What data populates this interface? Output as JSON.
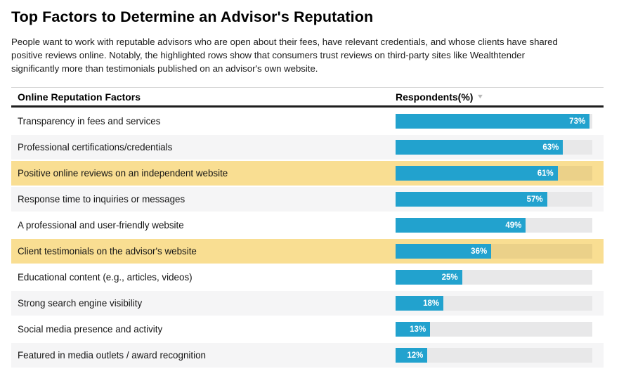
{
  "page": {
    "title": "Top Factors to Determine an Advisor's Reputation",
    "intro_lines": [
      "People want to work with reputable advisors who are open about their fees, have relevant credentials, and whose clients have shared",
      "positive reviews online. Notably, the highlighted rows show that consumers trust reviews on third-party sites like Wealthtender",
      "significantly more than testimonials published on an advisor's own website."
    ]
  },
  "table": {
    "factor_header": "Online Reputation Factors",
    "value_header": "Respondents(%)",
    "sort_icon": "▼"
  },
  "chart_data": {
    "type": "bar",
    "orientation": "horizontal",
    "title": "Top Factors to Determine an Advisor's Reputation",
    "column_headers": [
      "Online Reputation Factors",
      "Respondents(%)"
    ],
    "categories": [
      "Transparency in fees and services",
      "Professional certifications/credentials",
      "Positive online reviews on an independent website",
      "Response time to inquiries or messages",
      "A professional and user-friendly website",
      "Client testimonials on the advisor's website",
      "Educational content (e.g., articles, videos)",
      "Strong search engine visibility",
      "Social media presence and activity",
      "Featured in media outlets / award recognition"
    ],
    "values": [
      73,
      63,
      61,
      57,
      49,
      36,
      25,
      18,
      13,
      12
    ],
    "value_suffix": "%",
    "highlighted_indices": [
      2,
      5
    ],
    "highlight_meaning": "rows about online reviews vs testimonials referenced in the intro",
    "xlim": [
      0,
      74
    ],
    "grid": false,
    "legend": false,
    "colors": {
      "bar": "#22a2ce",
      "highlight_row": "#f9de92",
      "highlight_track": "#ebd189",
      "zebra_row": "#f5f5f6",
      "track": "#e8e8e9",
      "value_label": "#ffffff",
      "header_rule": "#1e1e1e"
    }
  }
}
